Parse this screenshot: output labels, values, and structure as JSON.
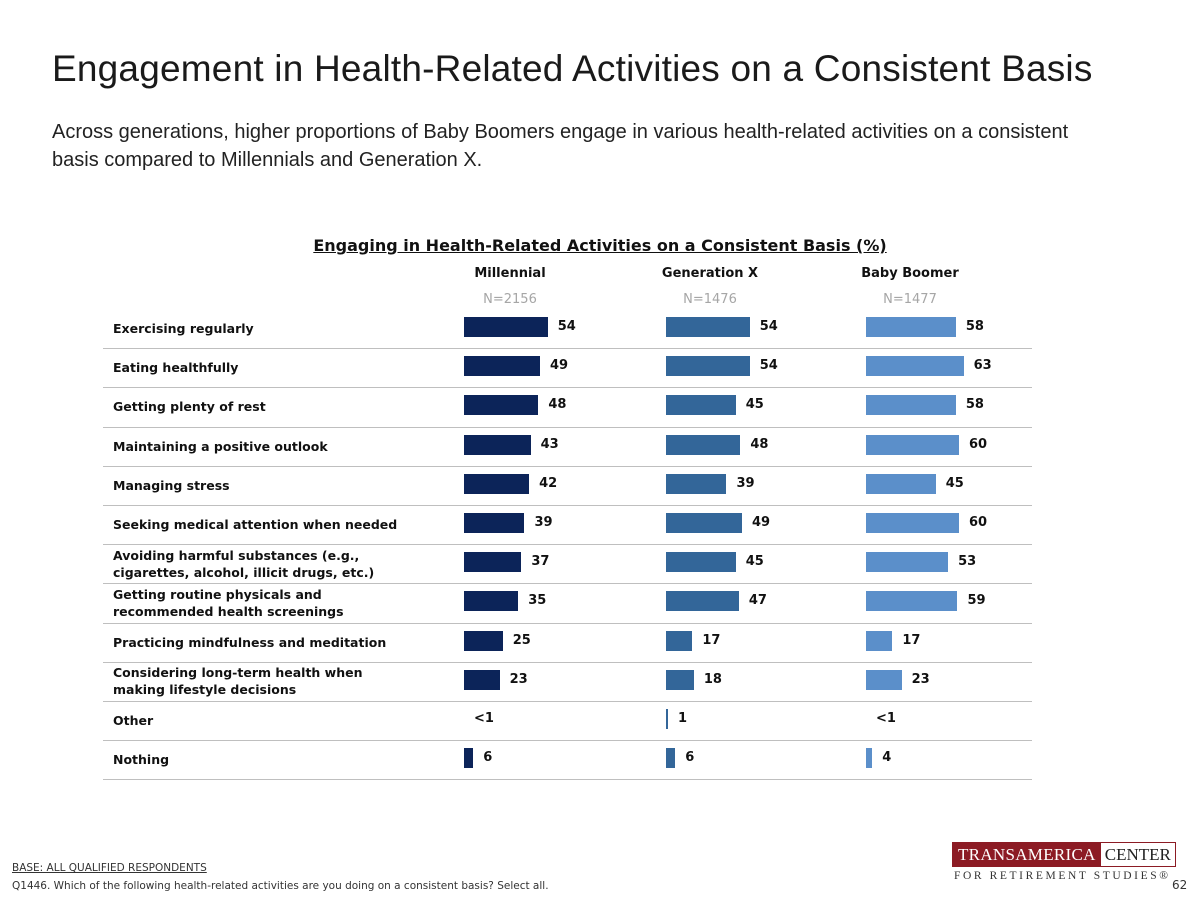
{
  "header": {
    "title": "Engagement in Health-Related Activities on a Consistent Basis",
    "subtitle": "Across generations, higher proportions of Baby Boomers engage in various health-related activities on a consistent basis compared to Millennials and Generation X."
  },
  "chart_data": {
    "type": "bar",
    "title": "Engaging in Health-Related Activities on a Consistent Basis (%)",
    "categories": [
      "Exercising regularly",
      "Eating healthfully",
      "Getting plenty of rest",
      "Maintaining a positive outlook",
      "Managing stress",
      "Seeking medical attention when needed",
      "Avoiding harmful substances (e.g., cigarettes, alcohol, illicit drugs, etc.)",
      "Getting routine physicals and recommended health screenings",
      "Practicing mindfulness and meditation",
      "Considering long-term health when making lifestyle decisions",
      "Other",
      "Nothing"
    ],
    "series": [
      {
        "name": "Millennial",
        "n_label": "N=2156",
        "color": "#0c2459",
        "values": [
          54,
          49,
          48,
          43,
          42,
          39,
          37,
          35,
          25,
          23,
          0.4,
          6
        ],
        "labels": [
          "54",
          "49",
          "48",
          "43",
          "42",
          "39",
          "37",
          "35",
          "25",
          "23",
          "<1",
          "6"
        ]
      },
      {
        "name": "Generation X",
        "n_label": "N=1476",
        "color": "#336699",
        "values": [
          54,
          54,
          45,
          48,
          39,
          49,
          45,
          47,
          17,
          18,
          1,
          6
        ],
        "labels": [
          "54",
          "54",
          "45",
          "48",
          "39",
          "49",
          "45",
          "47",
          "17",
          "18",
          "1",
          "6"
        ]
      },
      {
        "name": "Baby Boomer",
        "n_label": "N=1477",
        "color": "#5b8fca",
        "values": [
          58,
          63,
          58,
          60,
          45,
          60,
          53,
          59,
          17,
          23,
          0.4,
          4
        ],
        "labels": [
          "58",
          "63",
          "58",
          "60",
          "45",
          "60",
          "53",
          "59",
          "17",
          "23",
          "<1",
          "4"
        ]
      }
    ],
    "orientation": "horizontal",
    "grid": false
  },
  "footer": {
    "base": "BASE: ALL QUALIFIED RESPONDENTS",
    "question": "Q1446. Which of the following health-related activities are you doing on a consistent basis? Select all.",
    "page_number": "62"
  },
  "logo": {
    "brand_a": "TRANSAMERICA",
    "brand_b": "CENTER",
    "tagline": "FOR RETIREMENT STUDIES®"
  }
}
